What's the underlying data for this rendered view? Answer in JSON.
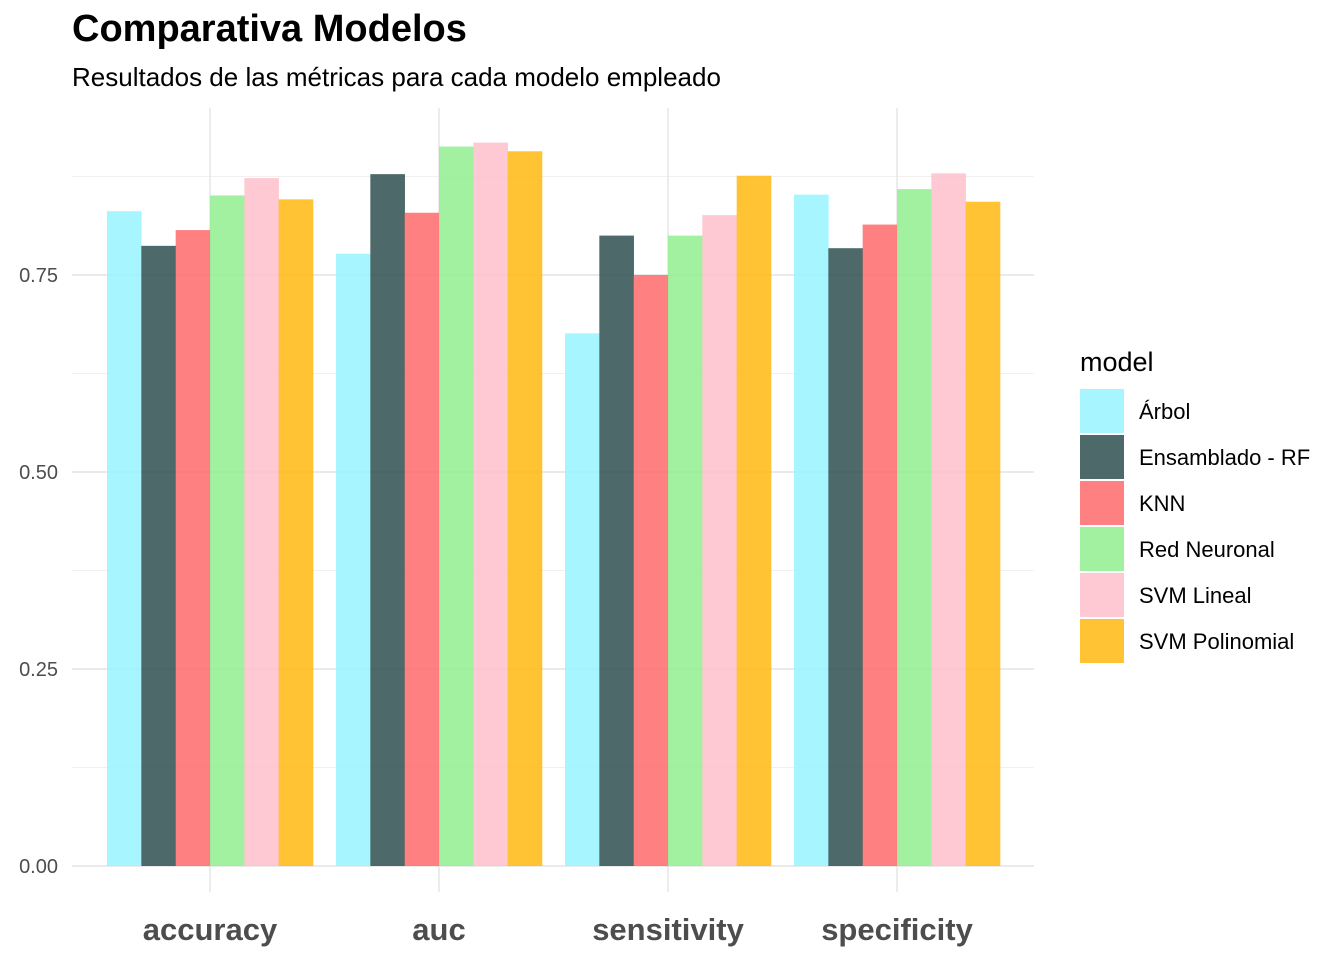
{
  "chart_data": {
    "type": "bar",
    "title": "Comparativa Modelos",
    "subtitle": "Resultados de las métricas para cada modelo empleado",
    "xlabel": "",
    "ylabel": "",
    "categories": [
      "accuracy",
      "auc",
      "sensitivity",
      "specificity"
    ],
    "ylim": [
      0,
      0.96
    ],
    "yticks": [
      0.0,
      0.25,
      0.5,
      0.75
    ],
    "ytick_labels": [
      "0.00",
      "0.25",
      "0.50",
      "0.75"
    ],
    "grid": true,
    "legend": {
      "title": "model",
      "position": "right"
    },
    "series": [
      {
        "name": "Árbol",
        "color": "#98F5FF",
        "values": [
          0.831,
          0.777,
          0.676,
          0.852
        ]
      },
      {
        "name": "Ensamblado - RF",
        "color": "#2F4F4F",
        "values": [
          0.787,
          0.878,
          0.8,
          0.784
        ]
      },
      {
        "name": "KNN",
        "color": "#FF6A6A",
        "values": [
          0.807,
          0.829,
          0.75,
          0.814
        ]
      },
      {
        "name": "Red Neuronal",
        "color": "#90EE90",
        "values": [
          0.851,
          0.913,
          0.8,
          0.859
        ]
      },
      {
        "name": "SVM Lineal",
        "color": "#FFC0CB",
        "values": [
          0.873,
          0.918,
          0.826,
          0.879
        ]
      },
      {
        "name": "SVM Polinomial",
        "color": "#FFB90F",
        "values": [
          0.846,
          0.907,
          0.876,
          0.843
        ]
      }
    ]
  }
}
